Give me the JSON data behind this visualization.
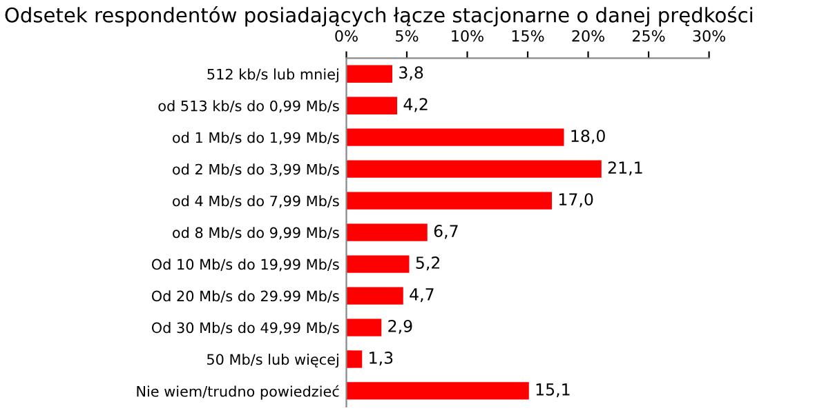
{
  "chart_data": {
    "type": "bar",
    "orientation": "horizontal",
    "title": "Odsetek respondentów posiadających łącze stacjonarne o danej prędkości",
    "categories": [
      "512 kb/s lub mniej",
      "od 513 kb/s do 0,99 Mb/s",
      "od 1 Mb/s do 1,99 Mb/s",
      "od 2 Mb/s do 3,99 Mb/s",
      "od 4 Mb/s do 7,99 Mb/s",
      "od 8 Mb/s do 9,99 Mb/s",
      "Od 10 Mb/s do 19,99 Mb/s",
      "Od 20 Mb/s do 29.99 Mb/s",
      "Od 30 Mb/s do 49,99 Mb/s",
      "50 Mb/s lub więcej",
      "Nie wiem/trudno powiedzieć"
    ],
    "values": [
      3.8,
      4.2,
      18.0,
      21.1,
      17.0,
      6.7,
      5.2,
      4.7,
      2.9,
      1.3,
      15.1
    ],
    "value_labels": [
      "3,8",
      "4,2",
      "18,0",
      "21,1",
      "17,0",
      "6,7",
      "5,2",
      "4,7",
      "2,9",
      "1,3",
      "15,1"
    ],
    "color": "#ff0000",
    "xlim": [
      0,
      30
    ],
    "xticks": [
      {
        "value": 0,
        "label": "0%"
      },
      {
        "value": 5,
        "label": "5%"
      },
      {
        "value": 10,
        "label": "10%"
      },
      {
        "value": 15,
        "label": "15%"
      },
      {
        "value": 20,
        "label": "20%"
      },
      {
        "value": 25,
        "label": "25%"
      },
      {
        "value": 30,
        "label": "30%"
      }
    ],
    "grid": false
  }
}
